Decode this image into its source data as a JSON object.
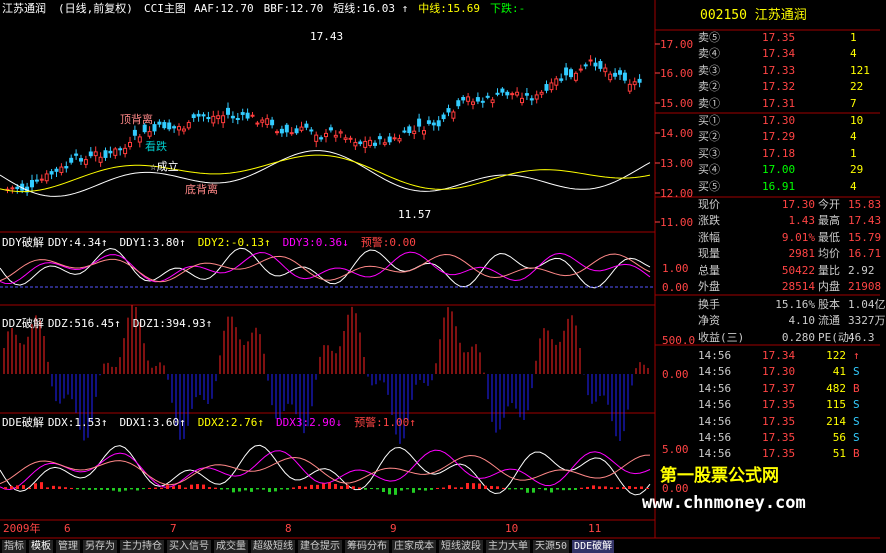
{
  "header": {
    "stock": "江苏通润",
    "mode": "(日线,前复权)",
    "indicator": "CCI主图",
    "items": [
      "AAF:12.70",
      "BBF:12.70",
      "短线:16.03 ↑",
      "中线:15.69",
      "下跌:-"
    ]
  },
  "main_axis": [
    "17.00",
    "16.00",
    "15.00",
    "14.00",
    "13.00",
    "12.00",
    "11.00"
  ],
  "annotations": [
    "顶背离",
    "看跌",
    "☆成立",
    "底背离",
    "17.43",
    "11.57"
  ],
  "panels": [
    {
      "items": [
        "DDY破解",
        "DDY:4.34↑",
        "DDY1:3.80↑",
        "DDY2:-0.13↑",
        "DDY3:0.36↓",
        "预警:0.00"
      ],
      "axis": [
        "1.00",
        "0.00"
      ]
    },
    {
      "items": [
        "DDZ破解",
        "DDZ:516.45↑",
        "DDZ1:394.93↑"
      ],
      "axis": [
        "500.0",
        "0.00"
      ]
    },
    {
      "items": [
        "DDE破解",
        "DDX:1.53↑",
        "DDX1:3.60↑",
        "DDX2:2.76↑",
        "DDX3:2.90↓",
        "预警:1.00↑"
      ],
      "axis": [
        "5.00",
        "0.00"
      ]
    }
  ],
  "dates": [
    "2009年",
    "6",
    "7",
    "8",
    "9",
    "10",
    "11"
  ],
  "tabs": [
    "指标",
    "模板",
    "管理",
    "另存为",
    "主力持仓",
    "买入信号",
    "成交量",
    "超级短线",
    "建仓提示",
    "筹码分布",
    "庄家成本",
    "短线波段",
    "主力大单",
    "天源50",
    "DDE破解"
  ],
  "quote": {
    "title": "002150 江苏通润",
    "sell": [
      [
        "卖⑤",
        "17.35",
        "1"
      ],
      [
        "卖④",
        "17.34",
        "4"
      ],
      [
        "卖③",
        "17.33",
        "121"
      ],
      [
        "卖②",
        "17.32",
        "22"
      ],
      [
        "卖①",
        "17.31",
        "7"
      ]
    ],
    "buy": [
      [
        "买①",
        "17.30",
        "10"
      ],
      [
        "买②",
        "17.29",
        "4"
      ],
      [
        "买③",
        "17.18",
        "1"
      ],
      [
        "买④",
        "17.00",
        "29"
      ],
      [
        "买⑤",
        "16.91",
        "4"
      ]
    ],
    "stats": [
      [
        "现价",
        "17.30",
        "今开",
        "15.83"
      ],
      [
        "涨跌",
        "1.43",
        "最高",
        "17.43"
      ],
      [
        "涨幅",
        "9.01%",
        "最低",
        "15.79"
      ],
      [
        "现量",
        "2981",
        "均价",
        "16.71"
      ],
      [
        "总量",
        "50422",
        "量比",
        "2.92"
      ],
      [
        "外盘",
        "28514",
        "内盘",
        "21908"
      ],
      [
        "换手",
        "15.16%",
        "股本",
        "1.04亿"
      ],
      [
        "净资",
        "4.10",
        "流通",
        "3327万"
      ],
      [
        "收益(三)",
        "0.280",
        "PE(动)",
        "46.3"
      ]
    ],
    "ticks": [
      [
        "14:56",
        "17.34",
        "122",
        "↑"
      ],
      [
        "14:56",
        "17.30",
        "41",
        "S"
      ],
      [
        "14:56",
        "17.37",
        "482",
        "B"
      ],
      [
        "14:56",
        "17.35",
        "115",
        "S"
      ],
      [
        "14:56",
        "17.35",
        "214",
        "S"
      ],
      [
        "14:56",
        "17.35",
        "56",
        "S"
      ],
      [
        "14:56",
        "17.35",
        "51",
        "B"
      ]
    ]
  },
  "watermark": {
    "name": "第一股票公式网",
    "url": "www.chnmoney.com"
  }
}
